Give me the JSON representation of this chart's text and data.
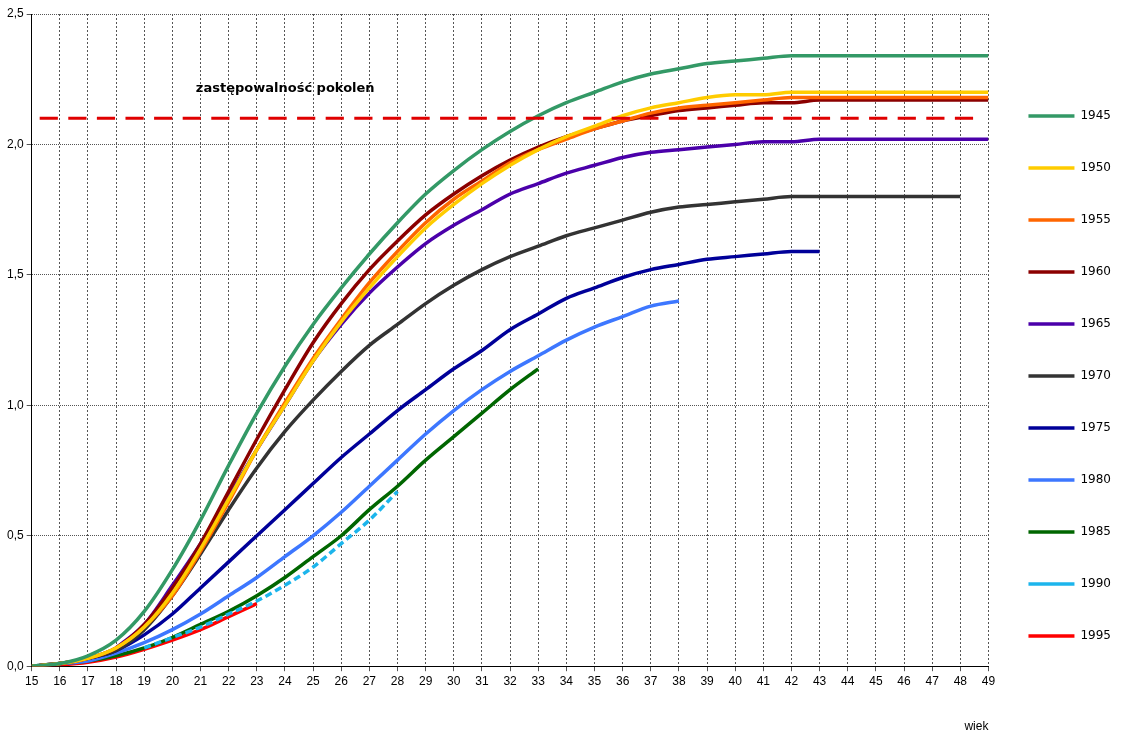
{
  "chart_data": {
    "type": "line",
    "xlabel": "wiek",
    "x": [
      15,
      16,
      17,
      18,
      19,
      20,
      21,
      22,
      23,
      24,
      25,
      26,
      27,
      28,
      29,
      30,
      31,
      32,
      33,
      34,
      35,
      36,
      37,
      38,
      39,
      40,
      41,
      42,
      43,
      44,
      45,
      46,
      47,
      48,
      49
    ],
    "xlim": [
      15,
      49
    ],
    "xticks": [
      15,
      16,
      17,
      18,
      19,
      20,
      21,
      22,
      23,
      24,
      25,
      26,
      27,
      28,
      29,
      30,
      31,
      32,
      33,
      34,
      35,
      36,
      37,
      38,
      39,
      40,
      41,
      42,
      43,
      44,
      45,
      46,
      47,
      48,
      49
    ],
    "ylim": [
      0,
      2.5
    ],
    "yticks": [
      {
        "value": 0,
        "label": "0,0"
      },
      {
        "value": 0.5,
        "label": "0,5"
      },
      {
        "value": 1,
        "label": "1,0"
      },
      {
        "value": 1.5,
        "label": "1,5"
      },
      {
        "value": 2,
        "label": "2,0"
      },
      {
        "value": 2.5,
        "label": "2,5"
      }
    ],
    "grid": true,
    "legend": "right",
    "marker": "none",
    "ref_lines": [
      {
        "axis": "y",
        "value": 2.1,
        "label": "zastępowalność pokoleń",
        "color": "#e00000",
        "line_style": "dashed"
      }
    ],
    "series": [
      {
        "name": "1945",
        "color": "#339966",
        "values": [
          0,
          0.01,
          0.04,
          0.1,
          0.21,
          0.37,
          0.56,
          0.77,
          0.97,
          1.15,
          1.31,
          1.45,
          1.58,
          1.7,
          1.81,
          1.9,
          1.98,
          2.05,
          2.11,
          2.16,
          2.2,
          2.24,
          2.27,
          2.29,
          2.31,
          2.32,
          2.33,
          2.34,
          2.34,
          2.34,
          2.34,
          2.34,
          2.34,
          2.34,
          2.34
        ]
      },
      {
        "name": "1950",
        "color": "#ffcc00",
        "values": [
          0,
          0.01,
          0.03,
          0.07,
          0.15,
          0.28,
          0.45,
          0.64,
          0.83,
          1.0,
          1.17,
          1.32,
          1.45,
          1.57,
          1.68,
          1.77,
          1.85,
          1.92,
          1.98,
          2.03,
          2.07,
          2.11,
          2.14,
          2.16,
          2.18,
          2.19,
          2.19,
          2.2,
          2.2,
          2.2,
          2.2,
          2.2,
          2.2,
          2.2,
          2.2
        ]
      },
      {
        "name": "1955",
        "color": "#ff6600",
        "values": [
          0,
          0.01,
          0.03,
          0.07,
          0.15,
          0.27,
          0.44,
          0.63,
          0.83,
          1.01,
          1.18,
          1.33,
          1.47,
          1.59,
          1.7,
          1.79,
          1.86,
          1.93,
          1.98,
          2.02,
          2.06,
          2.09,
          2.12,
          2.14,
          2.15,
          2.16,
          2.17,
          2.18,
          2.18,
          2.18,
          2.18,
          2.18,
          2.18,
          2.18,
          2.18
        ]
      },
      {
        "name": "1960",
        "color": "#8b0000",
        "values": [
          0,
          0.01,
          0.03,
          0.07,
          0.16,
          0.3,
          0.47,
          0.67,
          0.87,
          1.06,
          1.24,
          1.39,
          1.52,
          1.63,
          1.73,
          1.81,
          1.88,
          1.94,
          1.99,
          2.03,
          2.06,
          2.09,
          2.11,
          2.13,
          2.14,
          2.15,
          2.16,
          2.16,
          2.17,
          2.17,
          2.17,
          2.17,
          2.17,
          2.17,
          2.17
        ]
      },
      {
        "name": "1965",
        "color": "#4b00aa",
        "values": [
          null,
          null,
          null,
          0.07,
          0.16,
          0.31,
          0.47,
          0.65,
          0.83,
          1.0,
          1.17,
          1.31,
          1.43,
          1.53,
          1.62,
          1.69,
          1.75,
          1.81,
          1.85,
          1.89,
          1.92,
          1.95,
          1.97,
          1.98,
          1.99,
          2.0,
          2.01,
          2.01,
          2.02,
          2.02,
          2.02,
          2.02,
          2.02,
          2.02,
          2.02
        ]
      },
      {
        "name": "1970",
        "color": "#333333",
        "values": [
          0,
          0.01,
          0.03,
          0.06,
          0.14,
          0.27,
          0.43,
          0.6,
          0.76,
          0.9,
          1.02,
          1.13,
          1.23,
          1.31,
          1.39,
          1.46,
          1.52,
          1.57,
          1.61,
          1.65,
          1.68,
          1.71,
          1.74,
          1.76,
          1.77,
          1.78,
          1.79,
          1.8,
          1.8,
          1.8,
          1.8,
          1.8,
          1.8,
          1.8,
          null
        ]
      },
      {
        "name": "1975",
        "color": "#000099",
        "values": [
          0,
          0.01,
          0.03,
          0.06,
          0.12,
          0.2,
          0.3,
          0.4,
          0.5,
          0.6,
          0.7,
          0.8,
          0.89,
          0.98,
          1.06,
          1.14,
          1.21,
          1.29,
          1.35,
          1.41,
          1.45,
          1.49,
          1.52,
          1.54,
          1.56,
          1.57,
          1.58,
          1.59,
          1.59,
          null,
          null,
          null,
          null,
          null,
          null
        ]
      },
      {
        "name": "1980",
        "color": "#3d77ff",
        "values": [
          0,
          0.01,
          0.02,
          0.05,
          0.09,
          0.14,
          0.2,
          0.27,
          0.34,
          0.42,
          0.5,
          0.59,
          0.69,
          0.79,
          0.89,
          0.98,
          1.06,
          1.13,
          1.19,
          1.25,
          1.3,
          1.34,
          1.38,
          1.4,
          null,
          null,
          null,
          null,
          null,
          null,
          null,
          null,
          null,
          null,
          null
        ]
      },
      {
        "name": "1985",
        "color": "#006600",
        "values": [
          0,
          0.01,
          0.02,
          0.04,
          0.07,
          0.11,
          0.16,
          0.21,
          0.27,
          0.34,
          0.42,
          0.5,
          0.6,
          0.69,
          0.79,
          0.88,
          0.97,
          1.06,
          1.14,
          null,
          null,
          null,
          null,
          null,
          null,
          null,
          null,
          null,
          null,
          null,
          null,
          null,
          null,
          null,
          null
        ]
      },
      {
        "name": "1990",
        "color": "#1cb5ec",
        "line_style": "dashed",
        "values": [
          null,
          null,
          null,
          null,
          0.07,
          0.11,
          0.15,
          0.2,
          0.25,
          0.31,
          0.38,
          0.47,
          0.56,
          0.67,
          null,
          null,
          null,
          null,
          null,
          null,
          null,
          null,
          null,
          null,
          null,
          null,
          null,
          null,
          null,
          null,
          null,
          null,
          null,
          null,
          null
        ]
      },
      {
        "name": "1995",
        "color": "#ff0000",
        "values": [
          0,
          0.005,
          0.015,
          0.035,
          0.065,
          0.1,
          0.14,
          0.19,
          0.24,
          null,
          null,
          null,
          null,
          null,
          null,
          null,
          null,
          null,
          null,
          null,
          null,
          null,
          null,
          null,
          null,
          null,
          null,
          null,
          null,
          null,
          null,
          null,
          null,
          null,
          null
        ]
      }
    ]
  }
}
